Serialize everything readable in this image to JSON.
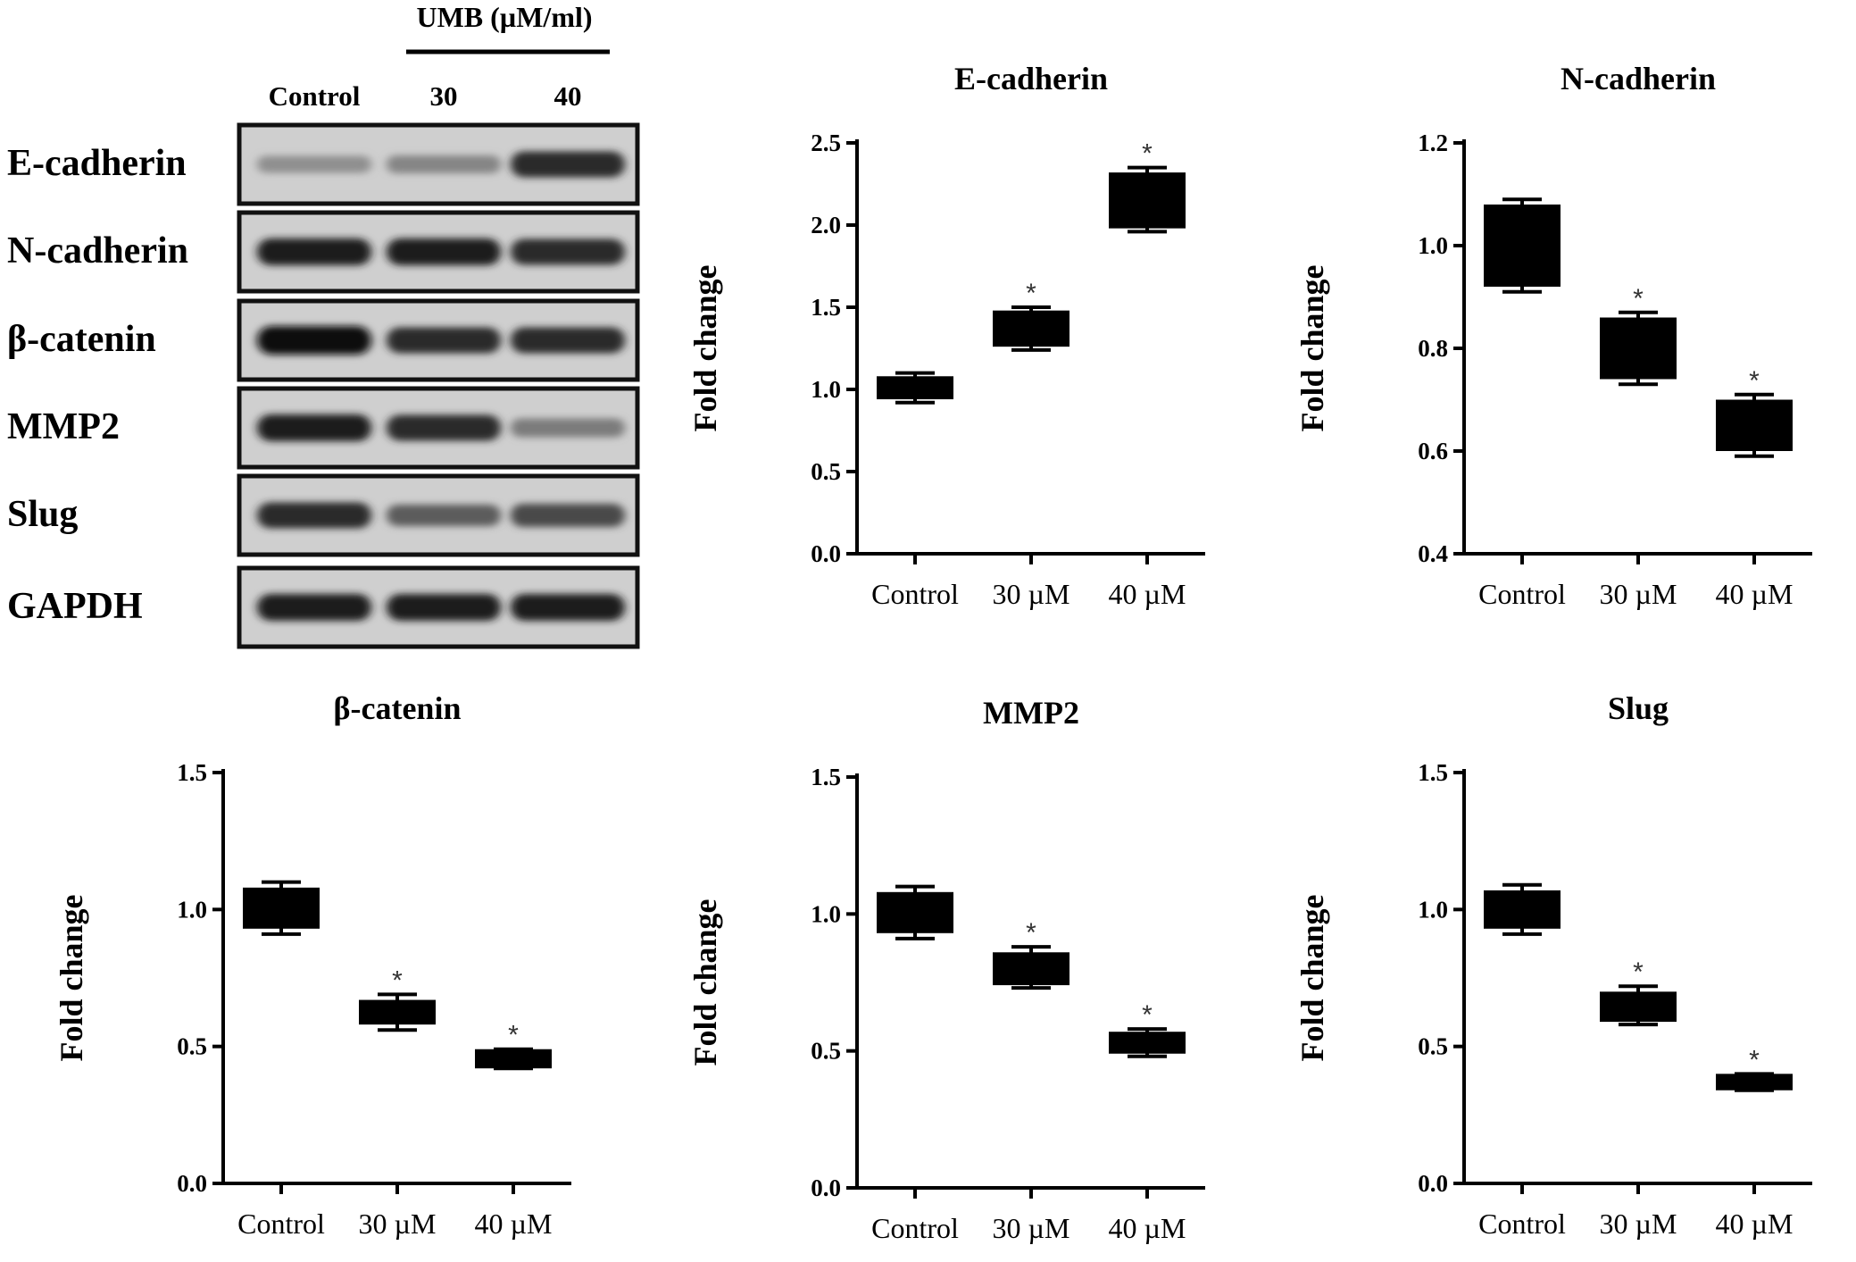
{
  "blot": {
    "treatment_label": "UMB (µM/ml)",
    "lane_labels": [
      "Control",
      "30",
      "40"
    ],
    "rows": [
      {
        "label": "E-cadherin",
        "bands": [
          0.35,
          0.4,
          0.85
        ]
      },
      {
        "label": "N-cadherin",
        "bands": [
          0.9,
          0.9,
          0.85
        ]
      },
      {
        "label": "β-catenin",
        "bands": [
          1.0,
          0.85,
          0.85
        ]
      },
      {
        "label": "MMP2",
        "bands": [
          0.9,
          0.85,
          0.45
        ]
      },
      {
        "label": "Slug",
        "bands": [
          0.85,
          0.6,
          0.7
        ]
      },
      {
        "label": "GAPDH",
        "bands": [
          0.9,
          0.9,
          0.9
        ]
      }
    ]
  },
  "chart_data": [
    {
      "type": "box",
      "title": "E-cadherin",
      "ylabel": "Fold change",
      "categories": [
        "Control",
        "30 µM",
        "40 µM"
      ],
      "ylim": [
        0,
        2.5
      ],
      "yticks": [
        "0.0",
        "0.5",
        "1.0",
        "1.5",
        "2.0",
        "2.5"
      ],
      "boxes": [
        {
          "min": 0.92,
          "q1": 0.94,
          "median": 1.0,
          "q3": 1.08,
          "max": 1.1,
          "sig": ""
        },
        {
          "min": 1.24,
          "q1": 1.26,
          "median": 1.36,
          "q3": 1.48,
          "max": 1.5,
          "sig": "*"
        },
        {
          "min": 1.96,
          "q1": 1.98,
          "median": 2.15,
          "q3": 2.32,
          "max": 2.35,
          "sig": "*"
        }
      ]
    },
    {
      "type": "box",
      "title": "N-cadherin",
      "ylabel": "Fold change",
      "categories": [
        "Control",
        "30 µM",
        "40 µM"
      ],
      "ylim": [
        0.4,
        1.2
      ],
      "yticks": [
        "0.4",
        "0.6",
        "0.8",
        "1.0",
        "1.2"
      ],
      "boxes": [
        {
          "min": 0.91,
          "q1": 0.92,
          "median": 1.0,
          "q3": 1.08,
          "max": 1.09,
          "sig": ""
        },
        {
          "min": 0.73,
          "q1": 0.74,
          "median": 0.8,
          "q3": 0.86,
          "max": 0.87,
          "sig": "*"
        },
        {
          "min": 0.59,
          "q1": 0.6,
          "median": 0.65,
          "q3": 0.7,
          "max": 0.71,
          "sig": "*"
        }
      ]
    },
    {
      "type": "box",
      "title": "β-catenin",
      "ylabel": "Fold change",
      "categories": [
        "Control",
        "30 µM",
        "40 µM"
      ],
      "ylim": [
        0,
        1.5
      ],
      "yticks": [
        "0.0",
        "0.5",
        "1.0",
        "1.5"
      ],
      "boxes": [
        {
          "min": 0.91,
          "q1": 0.93,
          "median": 1.0,
          "q3": 1.08,
          "max": 1.1,
          "sig": ""
        },
        {
          "min": 0.56,
          "q1": 0.58,
          "median": 0.62,
          "q3": 0.67,
          "max": 0.69,
          "sig": "*"
        },
        {
          "min": 0.42,
          "q1": 0.42,
          "median": 0.45,
          "q3": 0.49,
          "max": 0.49,
          "sig": "*"
        }
      ]
    },
    {
      "type": "box",
      "title": "MMP2",
      "ylabel": "Fold change",
      "categories": [
        "Control",
        "30 µM",
        "40 µM"
      ],
      "ylim": [
        0,
        1.5
      ],
      "yticks": [
        "0.0",
        "0.5",
        "1.0",
        "1.5"
      ],
      "boxes": [
        {
          "min": 0.91,
          "q1": 0.93,
          "median": 1.0,
          "q3": 1.08,
          "max": 1.1,
          "sig": ""
        },
        {
          "min": 0.73,
          "q1": 0.74,
          "median": 0.8,
          "q3": 0.86,
          "max": 0.88,
          "sig": "*"
        },
        {
          "min": 0.48,
          "q1": 0.49,
          "median": 0.53,
          "q3": 0.57,
          "max": 0.58,
          "sig": "*"
        }
      ]
    },
    {
      "type": "box",
      "title": "Slug",
      "ylabel": "Fold change",
      "categories": [
        "Control",
        "30 µM",
        "40 µM"
      ],
      "ylim": [
        0,
        1.5
      ],
      "yticks": [
        "0.0",
        "0.5",
        "1.0",
        "1.5"
      ],
      "boxes": [
        {
          "min": 0.91,
          "q1": 0.93,
          "median": 1.0,
          "q3": 1.07,
          "max": 1.09,
          "sig": ""
        },
        {
          "min": 0.58,
          "q1": 0.59,
          "median": 0.65,
          "q3": 0.7,
          "max": 0.72,
          "sig": "*"
        },
        {
          "min": 0.34,
          "q1": 0.34,
          "median": 0.37,
          "q3": 0.4,
          "max": 0.4,
          "sig": "*"
        }
      ]
    }
  ]
}
